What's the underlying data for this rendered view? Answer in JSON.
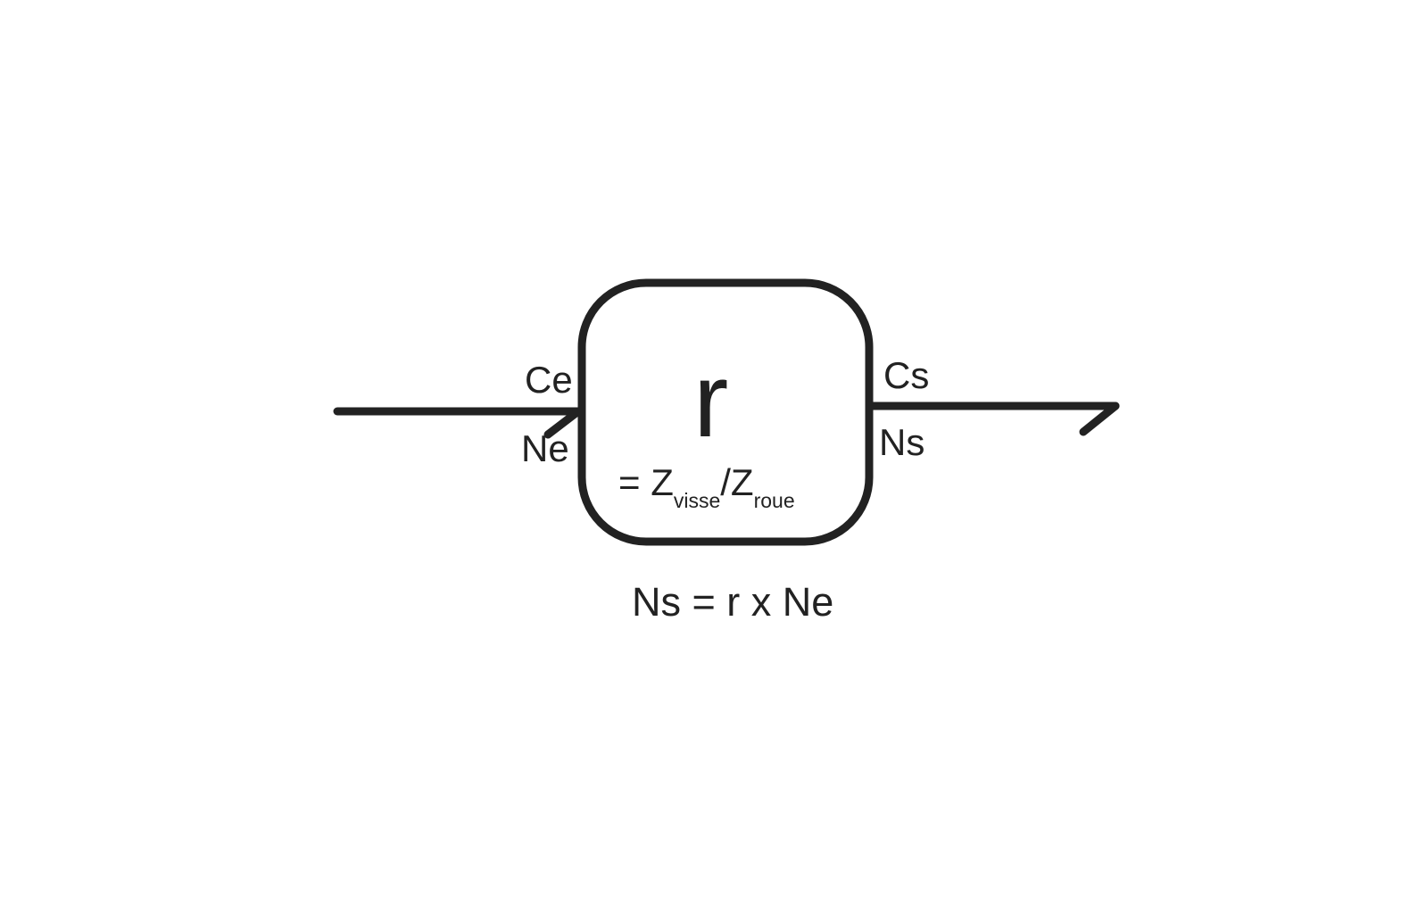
{
  "diagram": {
    "block": {
      "symbol": "r",
      "formula": {
        "prefix": "= Z",
        "sub1": "visse",
        "mid": "/Z",
        "sub2": "roue"
      }
    },
    "input": {
      "torque_label": "Ce",
      "speed_label": "Ne"
    },
    "output": {
      "torque_label": "Cs",
      "speed_label": "Ns"
    },
    "relation": "Ns = r x Ne",
    "stroke_color": "#222222",
    "background_color": "#ffffff"
  }
}
